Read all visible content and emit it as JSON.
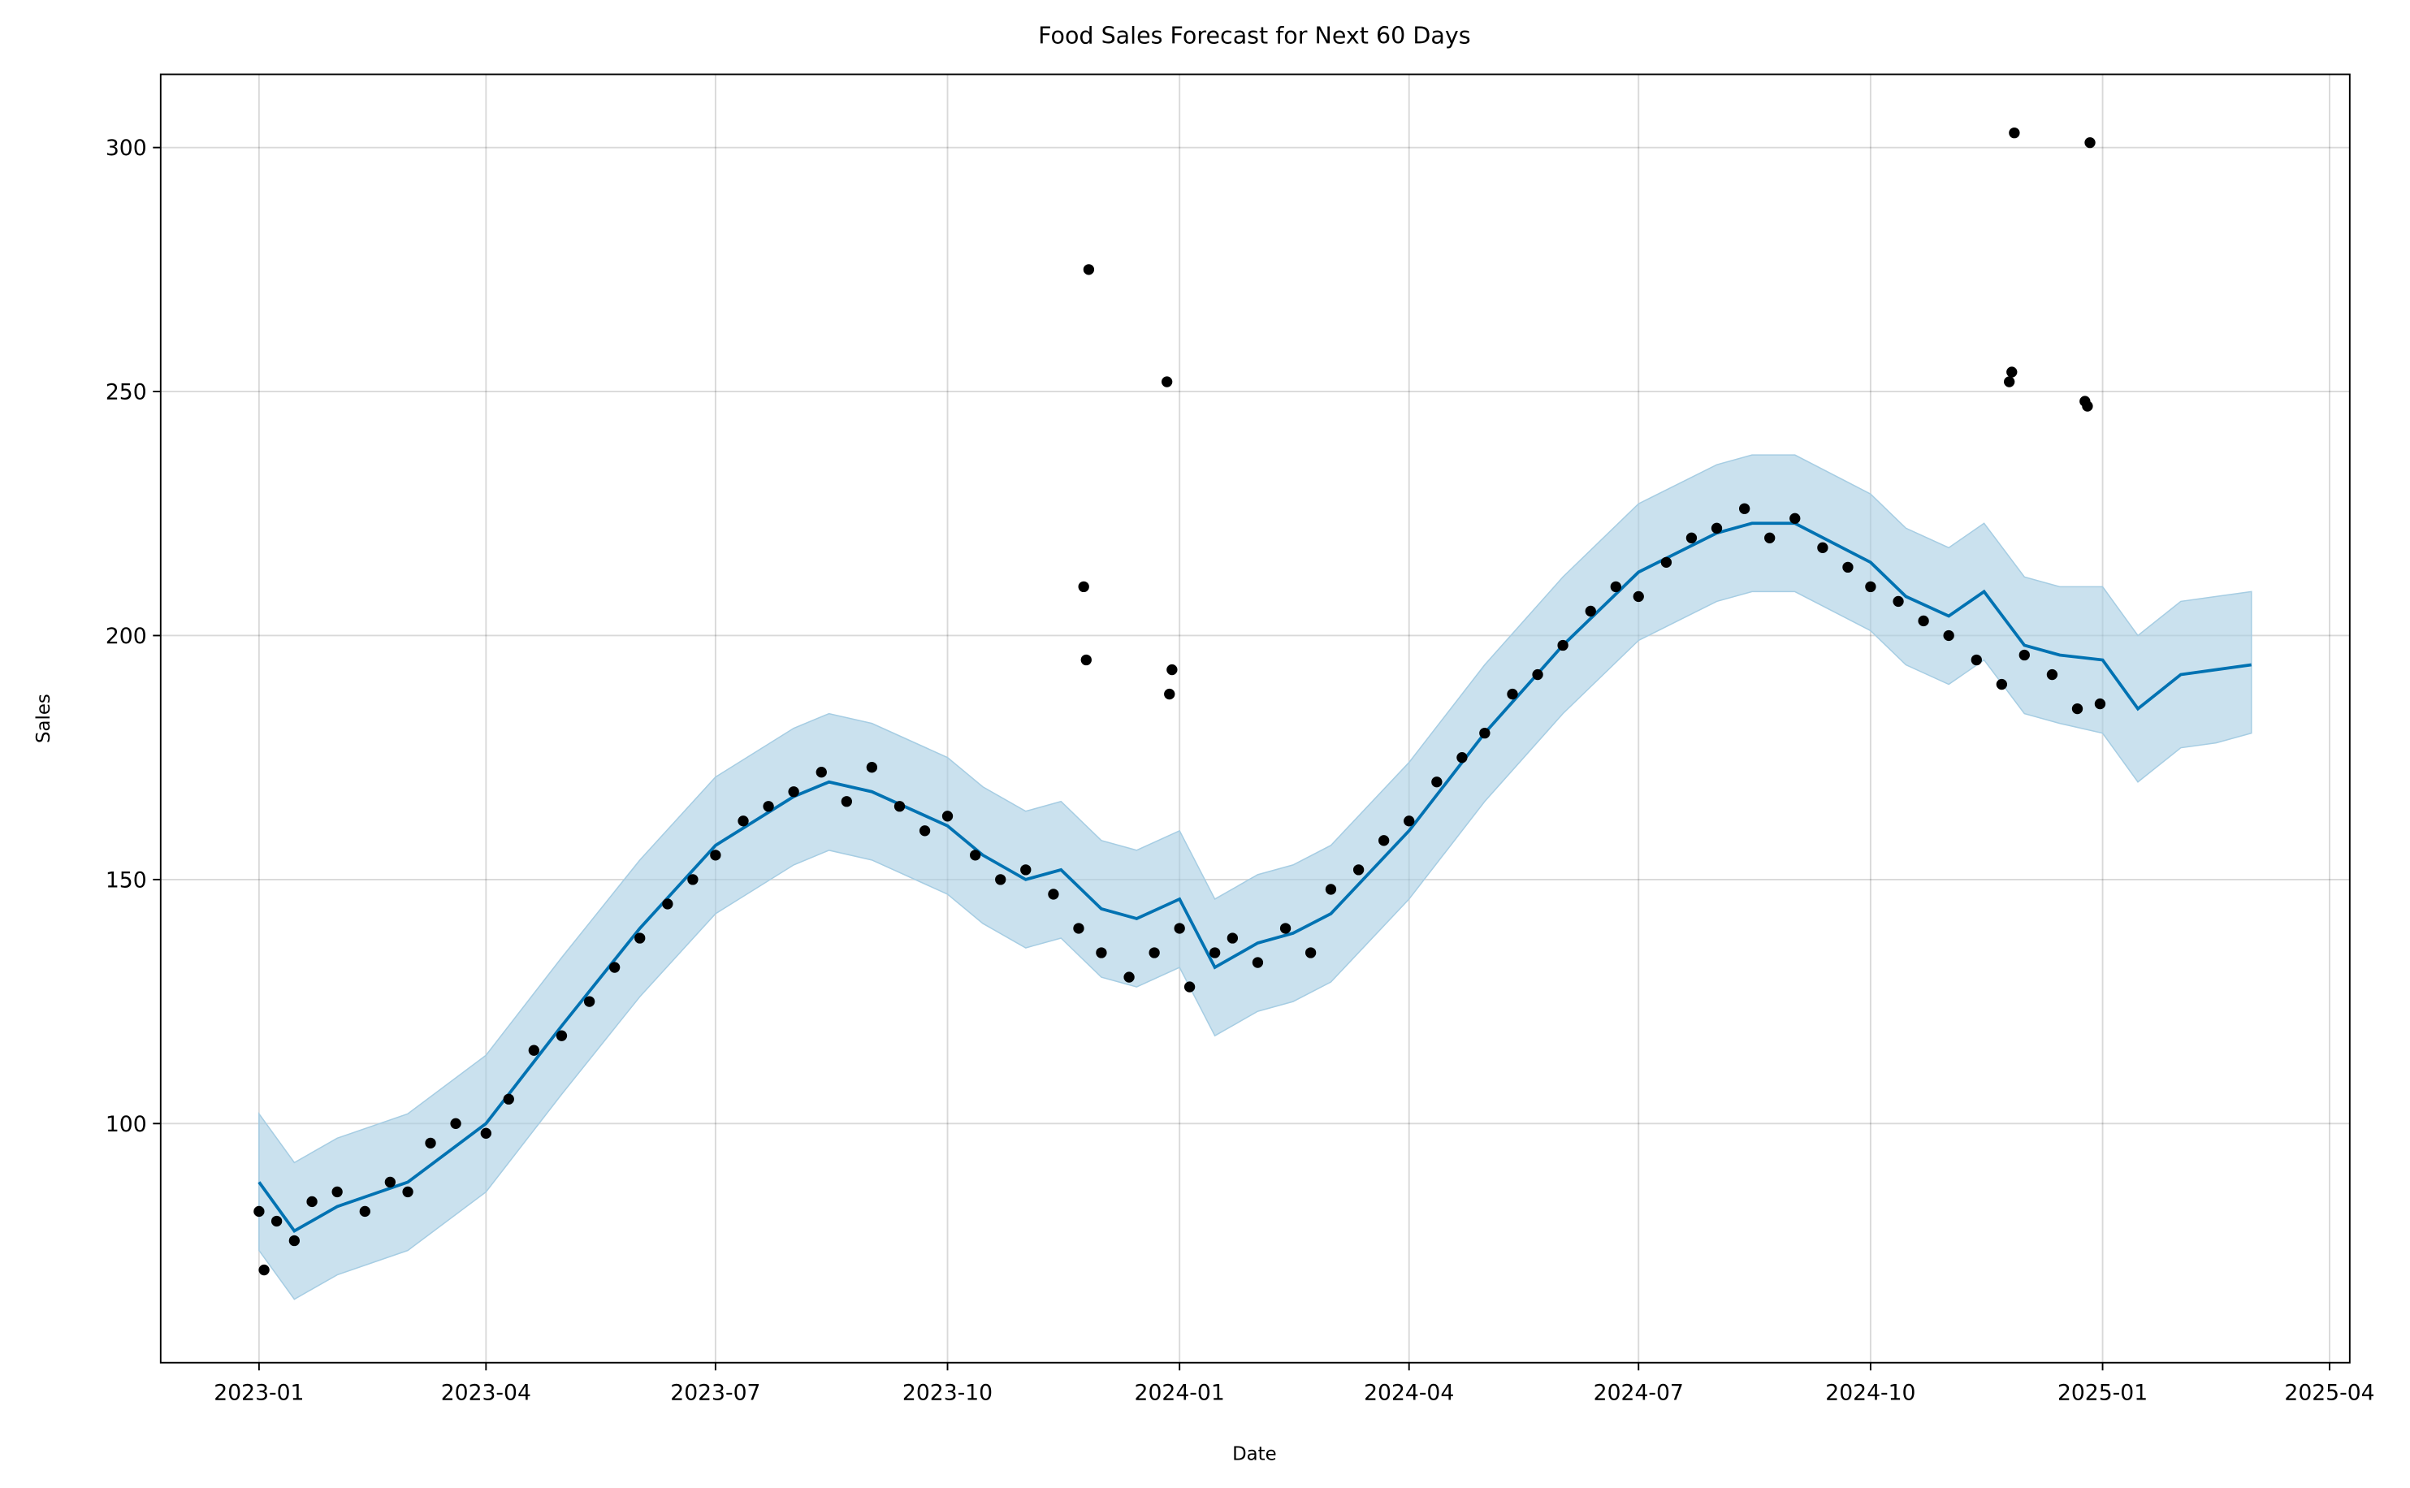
{
  "chart_data": {
    "type": "line",
    "title": "Food Sales Forecast for Next 60 Days",
    "x_label": "Date",
    "y_label": "Sales",
    "grid": true,
    "xlim": [
      "2022-11-23",
      "2025-04-09"
    ],
    "xticks": [
      {
        "value": "2023-01-01",
        "label": "2023-01"
      },
      {
        "value": "2023-04-01",
        "label": "2023-04"
      },
      {
        "value": "2023-07-01",
        "label": "2023-07"
      },
      {
        "value": "2023-10-01",
        "label": "2023-10"
      },
      {
        "value": "2024-01-01",
        "label": "2024-01"
      },
      {
        "value": "2024-04-01",
        "label": "2024-04"
      },
      {
        "value": "2024-07-01",
        "label": "2024-07"
      },
      {
        "value": "2024-10-01",
        "label": "2024-10"
      },
      {
        "value": "2025-01-01",
        "label": "2025-01"
      },
      {
        "value": "2025-04-01",
        "label": "2025-04"
      }
    ],
    "ylim": [
      51,
      315
    ],
    "yticks": [
      100,
      150,
      200,
      250,
      300
    ],
    "forecast": {
      "color": "#0072b2",
      "band_color": "#a6cde3",
      "x": [
        "2023-01-01",
        "2023-01-15",
        "2023-02-01",
        "2023-03-01",
        "2023-04-01",
        "2023-05-01",
        "2023-06-01",
        "2023-07-01",
        "2023-08-01",
        "2023-08-15",
        "2023-09-01",
        "2023-10-01",
        "2023-10-15",
        "2023-11-01",
        "2023-11-15",
        "2023-12-01",
        "2023-12-15",
        "2024-01-01",
        "2024-01-15",
        "2024-02-01",
        "2024-02-15",
        "2024-03-01",
        "2024-04-01",
        "2024-05-01",
        "2024-06-01",
        "2024-07-01",
        "2024-08-01",
        "2024-08-15",
        "2024-09-01",
        "2024-10-01",
        "2024-10-15",
        "2024-11-01",
        "2024-11-15",
        "2024-12-01",
        "2024-12-15",
        "2025-01-01",
        "2025-01-15",
        "2025-02-01",
        "2025-02-15",
        "2025-03-01"
      ],
      "values": [
        88,
        78,
        83,
        88,
        100,
        120,
        140,
        157,
        167,
        170,
        168,
        161,
        155,
        150,
        152,
        144,
        142,
        146,
        132,
        137,
        139,
        143,
        160,
        180,
        198,
        213,
        221,
        223,
        223,
        215,
        208,
        204,
        209,
        198,
        196,
        195,
        185,
        192,
        193,
        194
      ],
      "lower": [
        74,
        64,
        69,
        74,
        86,
        106,
        126,
        143,
        153,
        156,
        154,
        147,
        141,
        136,
        138,
        130,
        128,
        132,
        118,
        123,
        125,
        129,
        146,
        166,
        184,
        199,
        207,
        209,
        209,
        201,
        194,
        190,
        195,
        184,
        182,
        180,
        170,
        177,
        178,
        180
      ],
      "upper": [
        102,
        92,
        97,
        102,
        114,
        134,
        154,
        171,
        181,
        184,
        182,
        175,
        169,
        164,
        166,
        158,
        156,
        160,
        146,
        151,
        153,
        157,
        174,
        194,
        212,
        227,
        235,
        237,
        237,
        229,
        222,
        218,
        223,
        212,
        210,
        210,
        200,
        207,
        208,
        209
      ]
    },
    "actual": {
      "color": "#000000",
      "x": [
        "2023-01-01",
        "2023-01-03",
        "2023-01-08",
        "2023-01-15",
        "2023-01-22",
        "2023-02-01",
        "2023-02-12",
        "2023-02-22",
        "2023-03-01",
        "2023-03-10",
        "2023-03-20",
        "2023-04-01",
        "2023-04-10",
        "2023-04-20",
        "2023-05-01",
        "2023-05-12",
        "2023-05-22",
        "2023-06-01",
        "2023-06-12",
        "2023-06-22",
        "2023-07-01",
        "2023-07-12",
        "2023-07-22",
        "2023-08-01",
        "2023-08-12",
        "2023-08-22",
        "2023-09-01",
        "2023-09-12",
        "2023-09-22",
        "2023-10-01",
        "2023-10-12",
        "2023-10-22",
        "2023-11-01",
        "2023-11-12",
        "2023-11-22",
        "2023-11-24",
        "2023-11-25",
        "2023-11-26",
        "2023-12-01",
        "2023-12-12",
        "2023-12-22",
        "2023-12-27",
        "2023-12-28",
        "2023-12-29",
        "2024-01-01",
        "2024-01-05",
        "2024-01-15",
        "2024-01-22",
        "2024-02-01",
        "2024-02-12",
        "2024-02-22",
        "2024-03-01",
        "2024-03-12",
        "2024-03-22",
        "2024-04-01",
        "2024-04-12",
        "2024-04-22",
        "2024-05-01",
        "2024-05-12",
        "2024-05-22",
        "2024-06-01",
        "2024-06-12",
        "2024-06-22",
        "2024-07-01",
        "2024-07-12",
        "2024-07-22",
        "2024-08-01",
        "2024-08-12",
        "2024-08-22",
        "2024-09-01",
        "2024-09-12",
        "2024-09-22",
        "2024-10-01",
        "2024-10-12",
        "2024-10-22",
        "2024-11-01",
        "2024-11-12",
        "2024-11-22",
        "2024-11-25",
        "2024-11-26",
        "2024-11-27",
        "2024-12-01",
        "2024-12-12",
        "2024-12-22",
        "2024-12-25",
        "2024-12-26",
        "2024-12-27",
        "2024-12-31"
      ],
      "values": [
        82,
        70,
        80,
        76,
        84,
        86,
        82,
        88,
        86,
        96,
        100,
        98,
        105,
        115,
        118,
        125,
        132,
        138,
        145,
        150,
        155,
        162,
        165,
        168,
        172,
        166,
        173,
        165,
        160,
        163,
        155,
        150,
        152,
        147,
        140,
        210,
        195,
        275,
        135,
        130,
        135,
        252,
        188,
        193,
        140,
        128,
        135,
        138,
        133,
        140,
        135,
        148,
        152,
        158,
        162,
        170,
        175,
        180,
        188,
        192,
        198,
        205,
        210,
        208,
        215,
        220,
        222,
        226,
        220,
        224,
        218,
        214,
        210,
        207,
        203,
        200,
        195,
        190,
        252,
        254,
        303,
        196,
        192,
        185,
        248,
        247,
        301,
        186
      ]
    }
  }
}
